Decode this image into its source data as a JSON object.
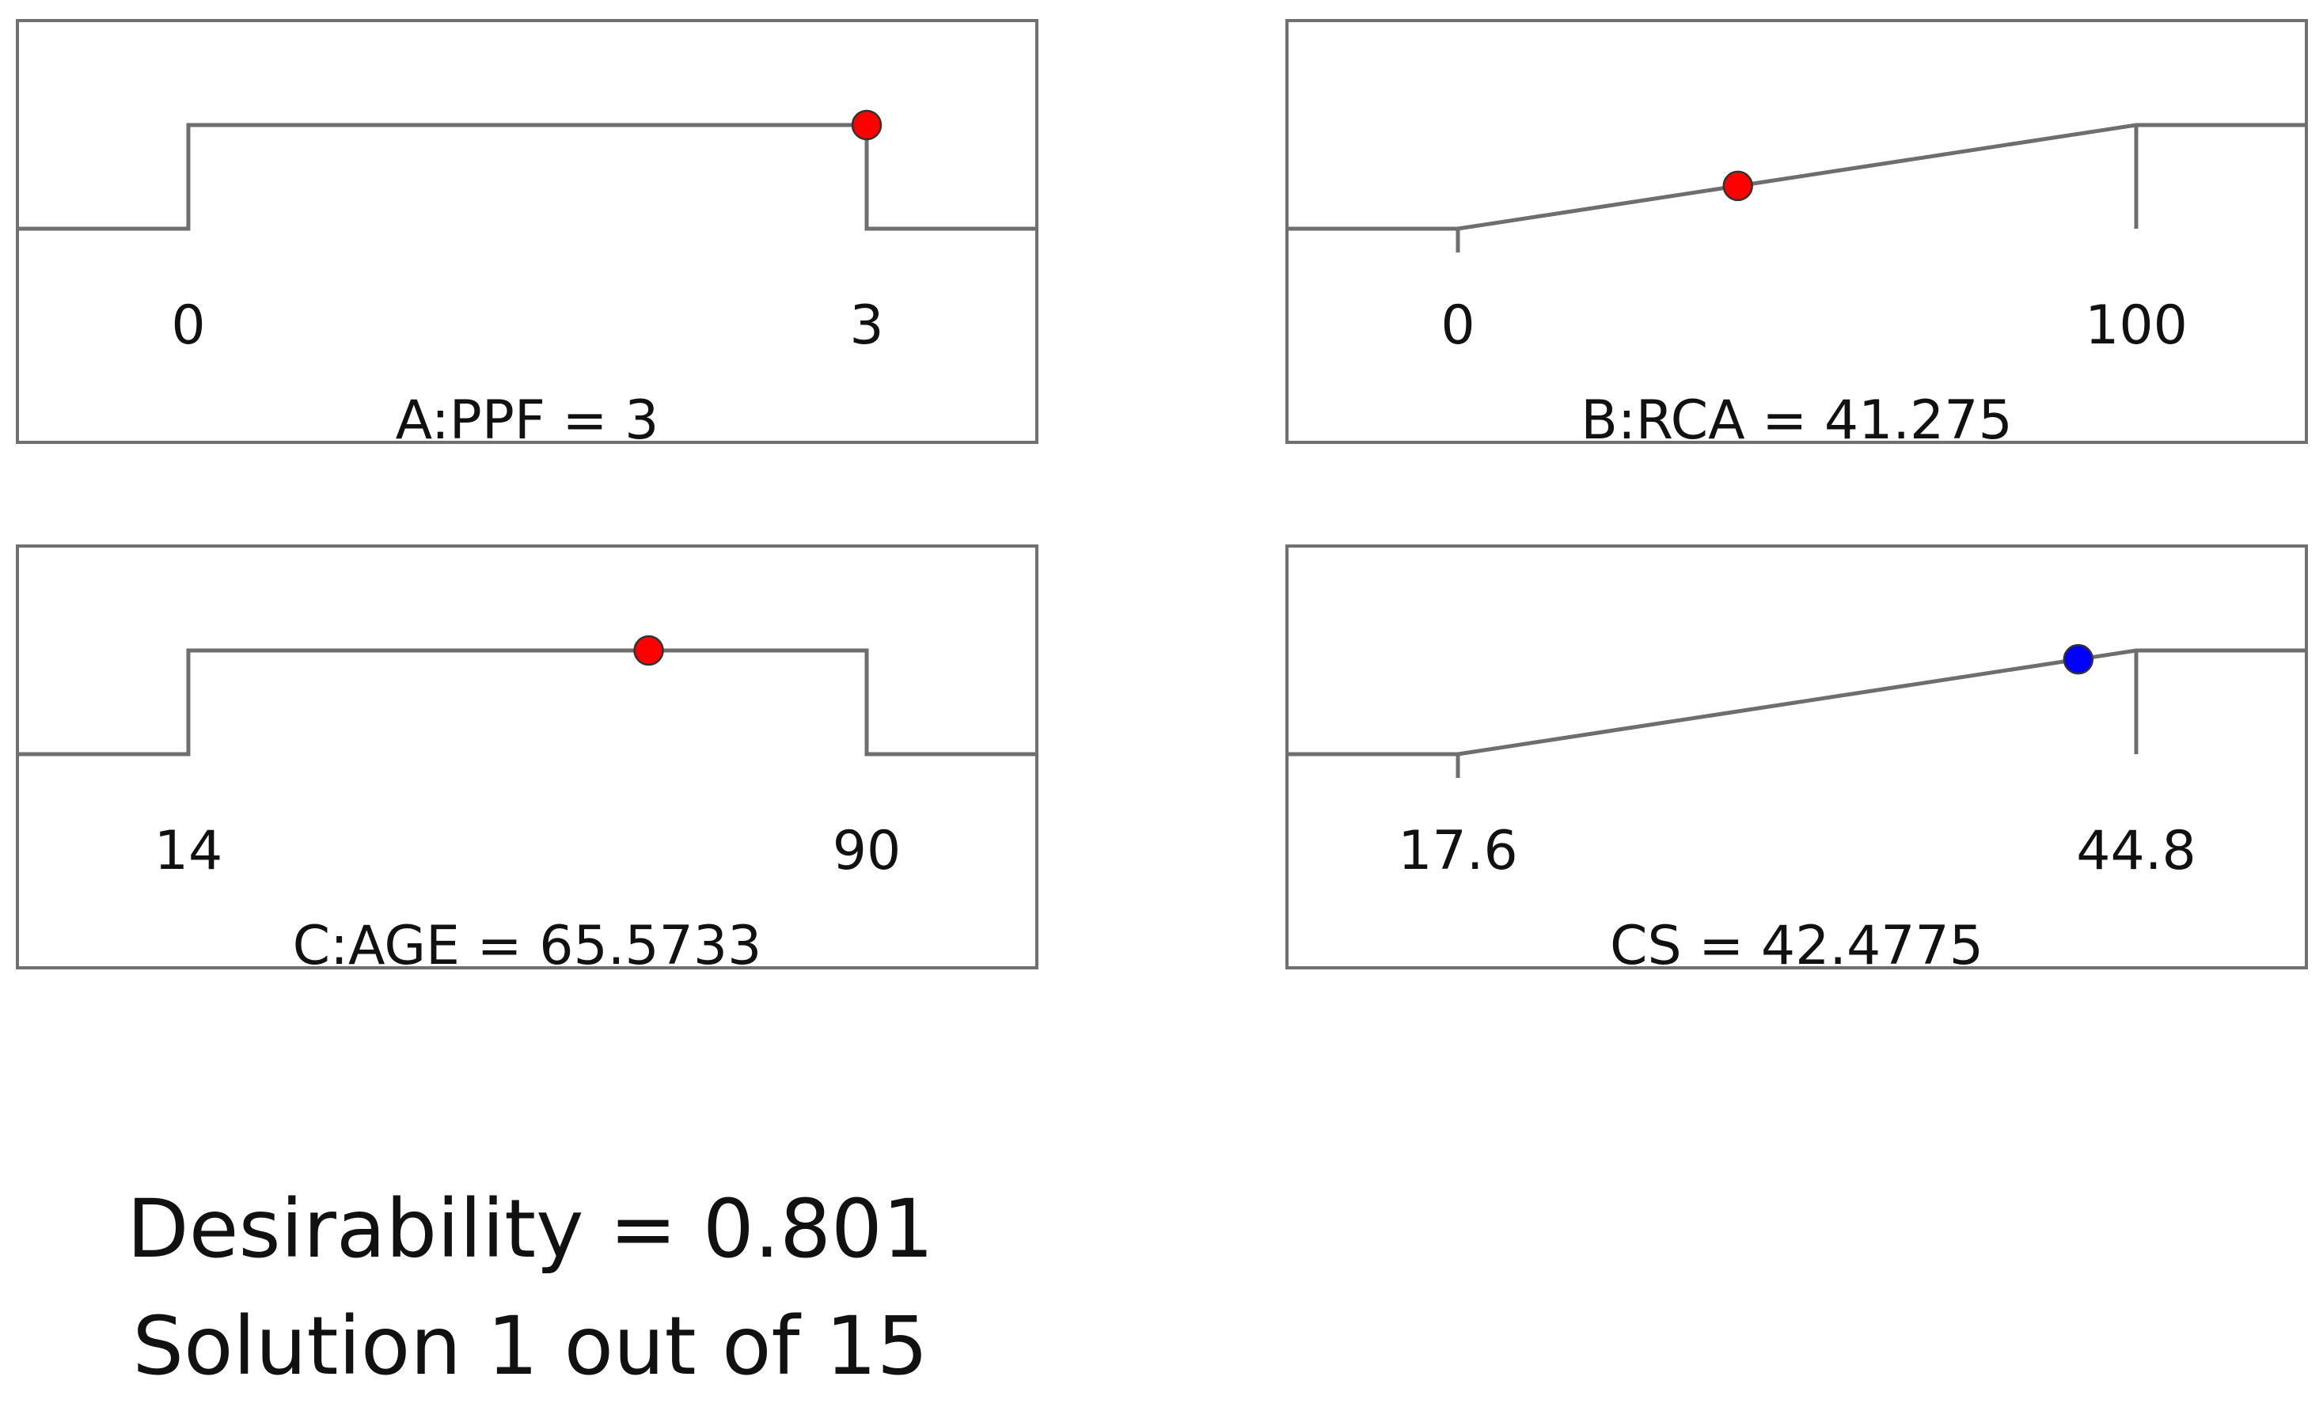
{
  "chart_data": [
    {
      "type": "line",
      "name": "A:PPF",
      "caption": "A:PPF = 3",
      "low_label": "0",
      "high_label": "3",
      "low": 0,
      "high": 3,
      "value": 3,
      "goal": "in-range",
      "marker_color": "#ff0000"
    },
    {
      "type": "line",
      "name": "B:RCA",
      "caption": "B:RCA = 41.275",
      "low_label": "0",
      "high_label": "100",
      "low": 0,
      "high": 100,
      "value": 41.275,
      "goal": "maximize",
      "marker_color": "#ff0000"
    },
    {
      "type": "line",
      "name": "C:AGE",
      "caption": "C:AGE = 65.5733",
      "low_label": "14",
      "high_label": "90",
      "low": 14,
      "high": 90,
      "value": 65.5733,
      "goal": "in-range",
      "marker_color": "#ff0000"
    },
    {
      "type": "line",
      "name": "CS",
      "caption": "CS = 42.4775",
      "low_label": "17.6",
      "high_label": "44.8",
      "low": 17.6,
      "high": 44.8,
      "value": 42.4775,
      "goal": "maximize",
      "marker_color": "#0000ff"
    }
  ],
  "summary": {
    "desirability": "Desirability = 0.801",
    "solution": "Solution 1 out of 15"
  }
}
